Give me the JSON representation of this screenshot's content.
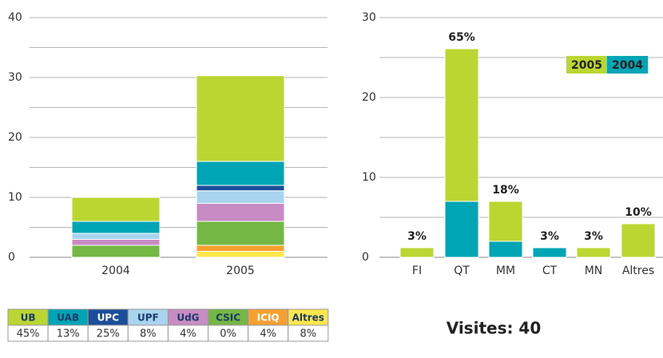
{
  "chart_data": [
    {
      "type": "stacked-bar",
      "categories": [
        "2004",
        "2005"
      ],
      "series": [
        {
          "name": "UB",
          "color": "#bcd631",
          "values": [
            4,
            14.3
          ]
        },
        {
          "name": "UAB",
          "color": "#00a5b5",
          "values": [
            2,
            4
          ]
        },
        {
          "name": "UPC",
          "color": "#1b4f9c",
          "values": [
            0,
            0.9
          ]
        },
        {
          "name": "UPF",
          "color": "#a8d4f0",
          "values": [
            1,
            2.1
          ]
        },
        {
          "name": "UdG",
          "color": "#c98bc4",
          "values": [
            1,
            3
          ]
        },
        {
          "name": "CSIC",
          "color": "#74b843",
          "values": [
            2,
            4
          ]
        },
        {
          "name": "ICIQ",
          "color": "#f7a030",
          "values": [
            0,
            1
          ]
        },
        {
          "name": "Altres",
          "color": "#fde74c",
          "values": [
            0,
            1
          ]
        }
      ],
      "legend_values": [
        "45%",
        "13%",
        "25%",
        "8%",
        "4%",
        "0%",
        "4%",
        "8%"
      ],
      "ylim": [
        0,
        40
      ],
      "yticks": [
        0,
        10,
        20,
        30,
        40
      ],
      "minor_grid": [
        5,
        15,
        25,
        35
      ],
      "grid": true
    },
    {
      "type": "stacked-bar",
      "categories": [
        "FI",
        "QT",
        "MM",
        "CT",
        "MN",
        "Altres"
      ],
      "series": [
        {
          "name": "2004",
          "color": "#00a5b5",
          "values": [
            0,
            7,
            2,
            1.2,
            0,
            0
          ]
        },
        {
          "name": "2005",
          "color": "#bcd631",
          "values": [
            1.2,
            19.1,
            5,
            0,
            1.2,
            4.2
          ]
        }
      ],
      "annotations": [
        "3%",
        "65%",
        "18%",
        "3%",
        "3%",
        "10%"
      ],
      "ylim": [
        0,
        30
      ],
      "yticks": [
        0,
        10,
        20,
        30
      ],
      "minor_grid": [
        5,
        15,
        25
      ],
      "grid": true,
      "legend": "top-right"
    }
  ],
  "caption": "Visites: 40"
}
